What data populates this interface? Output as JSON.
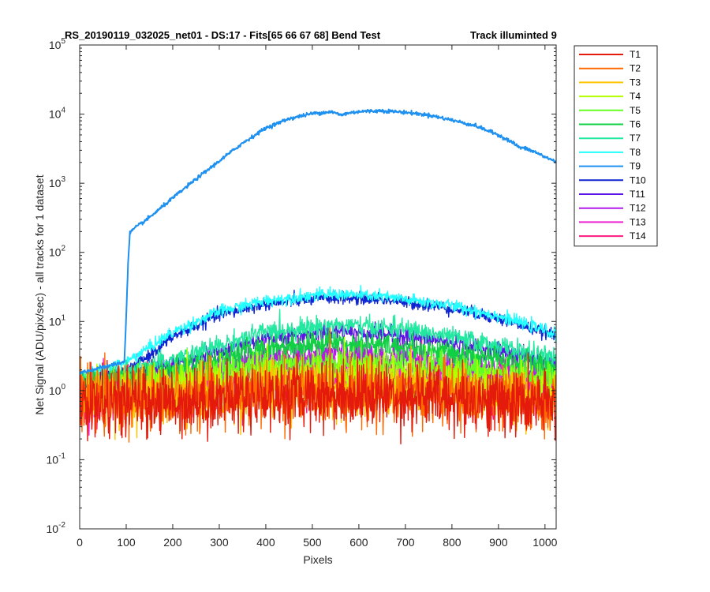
{
  "chart_data": {
    "type": "line",
    "title_left": "RS_20190119_032025_net01 - DS:17 - Fits[65  66  67  68]   Bend Test",
    "title_right": "Track illuminted 9",
    "xlabel": "Pixels",
    "ylabel": "Net Signal (ADU/pix/sec) - all tracks for 1 dataset",
    "xlim": [
      0,
      1024
    ],
    "ylim": [
      0.01,
      100000
    ],
    "yscale": "log",
    "grid": false,
    "legend_position": "outside-right",
    "x_ticks": [
      0,
      100,
      200,
      300,
      400,
      500,
      600,
      700,
      800,
      900,
      1000
    ],
    "y_ticks": [
      {
        "value": 0.01,
        "base": "10",
        "exp": "-2"
      },
      {
        "value": 0.1,
        "base": "10",
        "exp": "-1"
      },
      {
        "value": 1,
        "base": "10",
        "exp": "0"
      },
      {
        "value": 10,
        "base": "10",
        "exp": "1"
      },
      {
        "value": 100,
        "base": "10",
        "exp": "2"
      },
      {
        "value": 1000,
        "base": "10",
        "exp": "3"
      },
      {
        "value": 10000,
        "base": "10",
        "exp": "4"
      },
      {
        "value": 100000,
        "base": "10",
        "exp": "5"
      }
    ],
    "series": [
      {
        "name": "T1",
        "color": "#e41a0c",
        "noise": 0.55,
        "points": [
          [
            0,
            0.65
          ],
          [
            200,
            0.7
          ],
          [
            400,
            0.85
          ],
          [
            550,
            0.9
          ],
          [
            700,
            0.85
          ],
          [
            900,
            0.7
          ],
          [
            1024,
            0.6
          ]
        ]
      },
      {
        "name": "T2",
        "color": "#ff6a00",
        "noise": 0.5,
        "points": [
          [
            0,
            0.7
          ],
          [
            200,
            0.75
          ],
          [
            400,
            0.9
          ],
          [
            550,
            0.95
          ],
          [
            700,
            0.9
          ],
          [
            900,
            0.75
          ],
          [
            1024,
            0.65
          ]
        ]
      },
      {
        "name": "T3",
        "color": "#ffc400",
        "noise": 0.45,
        "points": [
          [
            0,
            0.75
          ],
          [
            200,
            0.8
          ],
          [
            400,
            1.0
          ],
          [
            550,
            1.1
          ],
          [
            700,
            1.0
          ],
          [
            900,
            0.85
          ],
          [
            1024,
            0.75
          ]
        ]
      },
      {
        "name": "T4",
        "color": "#b4ff00",
        "noise": 0.35,
        "points": [
          [
            0,
            0.9
          ],
          [
            200,
            1.1
          ],
          [
            400,
            1.5
          ],
          [
            550,
            1.7
          ],
          [
            700,
            1.5
          ],
          [
            900,
            1.2
          ],
          [
            1024,
            1.0
          ]
        ]
      },
      {
        "name": "T5",
        "color": "#66ff22",
        "noise": 0.25,
        "points": [
          [
            0,
            1.0
          ],
          [
            200,
            1.5
          ],
          [
            400,
            2.4
          ],
          [
            550,
            2.6
          ],
          [
            700,
            2.4
          ],
          [
            900,
            1.8
          ],
          [
            1024,
            1.5
          ]
        ]
      },
      {
        "name": "T6",
        "color": "#11d044",
        "noise": 0.2,
        "points": [
          [
            0,
            1.2
          ],
          [
            200,
            2.0
          ],
          [
            400,
            4.2
          ],
          [
            550,
            5.0
          ],
          [
            700,
            4.3
          ],
          [
            900,
            2.8
          ],
          [
            1024,
            2.2
          ]
        ]
      },
      {
        "name": "T7",
        "color": "#22e8a0",
        "noise": 0.16,
        "points": [
          [
            0,
            1.3
          ],
          [
            200,
            2.8
          ],
          [
            400,
            7.2
          ],
          [
            550,
            9.0
          ],
          [
            700,
            7.8
          ],
          [
            900,
            4.5
          ],
          [
            1024,
            2.9
          ]
        ]
      },
      {
        "name": "T8",
        "color": "#22ffff",
        "noise": 0.1,
        "points": [
          [
            0,
            1.5
          ],
          [
            100,
            2.6
          ],
          [
            200,
            7.0
          ],
          [
            300,
            14.0
          ],
          [
            400,
            20.0
          ],
          [
            500,
            24.0
          ],
          [
            550,
            25.0
          ],
          [
            650,
            23.0
          ],
          [
            800,
            17.0
          ],
          [
            900,
            12.0
          ],
          [
            1000,
            7.5
          ],
          [
            1024,
            6.5
          ]
        ]
      },
      {
        "name": "T9",
        "color": "#1e90f0",
        "noise": 0.03,
        "points": [
          [
            0,
            1.8
          ],
          [
            96,
            2.6
          ],
          [
            100,
            12
          ],
          [
            104,
            70
          ],
          [
            108,
            190
          ],
          [
            115,
            215
          ],
          [
            150,
            320
          ],
          [
            200,
            610
          ],
          [
            250,
            1150
          ],
          [
            300,
            2100
          ],
          [
            350,
            3800
          ],
          [
            400,
            6300
          ],
          [
            450,
            8600
          ],
          [
            500,
            10200
          ],
          [
            540,
            10800
          ],
          [
            550,
            10300
          ],
          [
            562,
            9700
          ],
          [
            575,
            10300
          ],
          [
            600,
            10900
          ],
          [
            650,
            11200
          ],
          [
            700,
            10600
          ],
          [
            750,
            9700
          ],
          [
            800,
            8200
          ],
          [
            850,
            6800
          ],
          [
            900,
            5000
          ],
          [
            930,
            3900
          ],
          [
            945,
            3300
          ],
          [
            960,
            3150
          ],
          [
            980,
            2800
          ],
          [
            1000,
            2400
          ],
          [
            1024,
            2050
          ]
        ]
      },
      {
        "name": "T10",
        "color": "#0e24d0",
        "noise": 0.1,
        "points": [
          [
            0,
            1.3
          ],
          [
            100,
            1.8
          ],
          [
            200,
            6.0
          ],
          [
            300,
            12.5
          ],
          [
            400,
            18.0
          ],
          [
            500,
            21.0
          ],
          [
            550,
            22.0
          ],
          [
            650,
            21.0
          ],
          [
            800,
            15.5
          ],
          [
            900,
            11.0
          ],
          [
            1000,
            7.0
          ],
          [
            1024,
            6.0
          ]
        ]
      },
      {
        "name": "T11",
        "color": "#5a14e6",
        "noise": 0.14,
        "points": [
          [
            0,
            1.3
          ],
          [
            200,
            2.4
          ],
          [
            400,
            5.8
          ],
          [
            550,
            7.3
          ],
          [
            700,
            6.3
          ],
          [
            900,
            3.8
          ],
          [
            1024,
            2.5
          ]
        ]
      },
      {
        "name": "T12",
        "color": "#b21ce8",
        "noise": 0.25,
        "points": [
          [
            0,
            1.0
          ],
          [
            200,
            1.6
          ],
          [
            400,
            2.9
          ],
          [
            550,
            3.5
          ],
          [
            700,
            3.0
          ],
          [
            900,
            2.0
          ],
          [
            1024,
            1.6
          ]
        ]
      },
      {
        "name": "T13",
        "color": "#ee22d0",
        "noise": 0.35,
        "points": [
          [
            0,
            0.9
          ],
          [
            200,
            1.2
          ],
          [
            400,
            1.9
          ],
          [
            550,
            2.1
          ],
          [
            700,
            1.9
          ],
          [
            900,
            1.4
          ],
          [
            1024,
            1.1
          ]
        ]
      },
      {
        "name": "T14",
        "color": "#ff1a80",
        "noise": 0.42,
        "points": [
          [
            0,
            0.8
          ],
          [
            200,
            1.0
          ],
          [
            400,
            1.5
          ],
          [
            550,
            1.7
          ],
          [
            700,
            1.5
          ],
          [
            900,
            1.1
          ],
          [
            1024,
            0.95
          ]
        ]
      }
    ]
  }
}
